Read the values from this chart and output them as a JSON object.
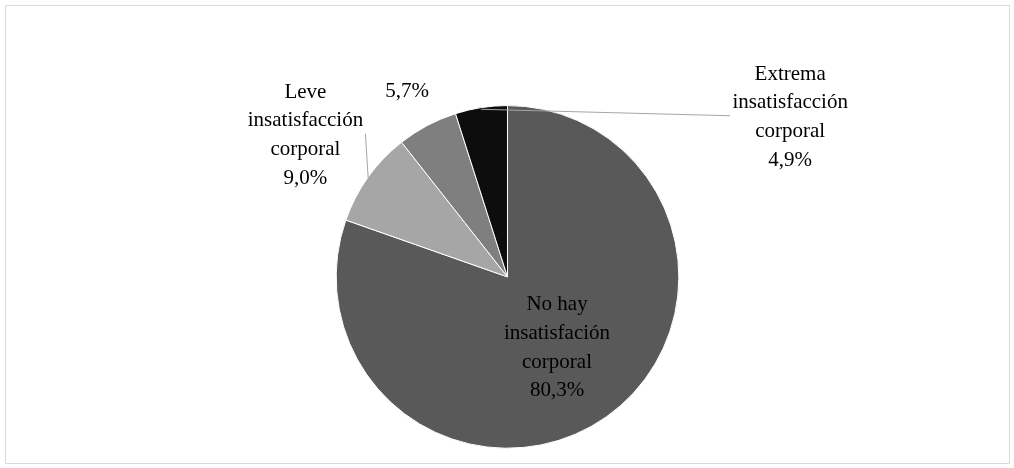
{
  "chart_data": {
    "type": "pie",
    "categories": [
      "No hay insatisfación corporal",
      "Leve insatisfacción corporal",
      null,
      "Extrema insatisfacción corporal"
    ],
    "values": [
      80.3,
      9.0,
      5.7,
      4.9
    ],
    "value_labels": [
      "80,3%",
      "9,0%",
      "5,7%",
      "4,9%"
    ],
    "colors": [
      "#595959",
      "#a6a6a6",
      "#7f7f7f",
      "#0d0d0d"
    ]
  }
}
